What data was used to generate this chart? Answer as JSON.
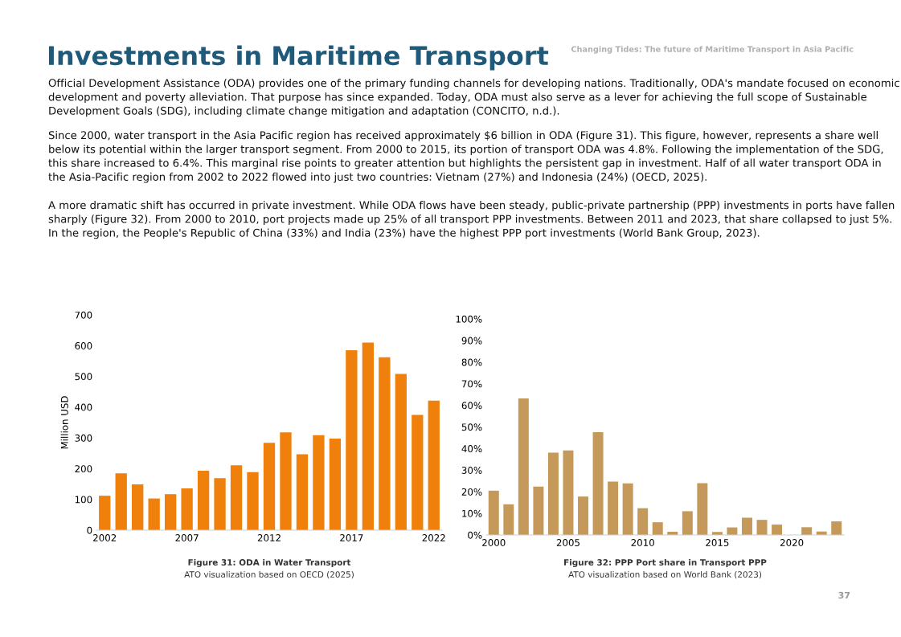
{
  "chart_data": [
    {
      "type": "other",
      "title": "Investments in Maritime Transport",
      "subtitle": "Changing Tides: The future of Maritime Transport in Asia Pacific",
      "annotations": [
        "Official Development Assistance (ODA) provides one of the primary funding channels for developing nations. Traditionally, ODA's mandate focused on economic development and poverty alleviation. That purpose has since expanded. Today, ODA must also serve as a lever for achieving the full scope of Sustainable Development Goals (SDG), including climate change mitigation and adaptation (CONCITO, n.d.).",
        "Since 2000, water transport in the Asia Pacific region has received approximately $6 billion in ODA (Figure 31). This figure, however, represents a share well below its potential within the larger transport segment. From 2000 to 2015, its portion of transport ODA was 4.8%. Following the implementation of the SDG, this share increased to 6.4%. This marginal rise points to greater attention but highlights the persistent gap in investment. Half of all water transport ODA in the Asia-Pacific region from 2002 to 2022 flowed into just two countries: Vietnam (27%) and Indonesia (24%) (OECD, 2025).",
        "A more dramatic shift has occurred in private investment. While ODA flows have been steady, public-private partnership (PPP) investments in ports have fallen sharply (Figure 32). From 2000 to 2010, port projects made up 25% of all transport PPP investments. Between 2011 and 2023, that share collapsed to just 5%. In the region, the People's Republic of China (33%) and India (23%) have the highest PPP port investments (World Bank Group, 2023).",
        "37"
      ]
    },
    {
      "type": "bar",
      "title": "Figure 31: ODA in Water Transport",
      "annotations": [
        "ATO visualization based on OECD (2025)"
      ],
      "ylabel": "Million USD",
      "color": "#f0800c",
      "x": [
        2002,
        2003,
        2004,
        2005,
        2006,
        2007,
        2008,
        2009,
        2010,
        2011,
        2012,
        2013,
        2014,
        2015,
        2016,
        2017,
        2018,
        2019,
        2020,
        2021,
        2022
      ],
      "values": [
        112,
        185,
        149,
        103,
        117,
        136,
        193,
        169,
        211,
        189,
        284,
        318,
        247,
        309,
        298,
        585,
        610,
        562,
        508,
        375,
        421
      ],
      "xlim": [
        2001.5,
        2022.5
      ],
      "xticks": [
        2002,
        2007,
        2012,
        2017,
        2022
      ],
      "ylim": [
        0,
        700
      ],
      "yticks": [
        0,
        100,
        200,
        300,
        400,
        500,
        600,
        700
      ],
      "grid": false
    },
    {
      "type": "bar",
      "title": "Figure 32: PPP Port share in Transport PPP",
      "annotations": [
        "ATO visualization based on World Bank (2023)"
      ],
      "color": "#c4995a",
      "x": [
        2000,
        2001,
        2002,
        2003,
        2004,
        2005,
        2006,
        2007,
        2008,
        2009,
        2010,
        2011,
        2012,
        2013,
        2014,
        2015,
        2016,
        2017,
        2018,
        2019,
        2020,
        2021,
        2022,
        2023
      ],
      "values": [
        20.5,
        14.2,
        63.2,
        22.4,
        38.1,
        39.1,
        17.8,
        47.6,
        24.7,
        23.9,
        12.4,
        5.9,
        1.5,
        11.0,
        24.0,
        1.4,
        3.5,
        8.0,
        7.0,
        4.8,
        0,
        3.6,
        1.6,
        6.3
      ],
      "xlim": [
        1999.5,
        2023.5
      ],
      "xticks": [
        2000,
        2005,
        2010,
        2015,
        2020
      ],
      "ylim": [
        0,
        100
      ],
      "yticks": [
        {
          "value": 0,
          "label": "0%"
        },
        {
          "value": 10,
          "label": "10%"
        },
        {
          "value": 20,
          "label": "20%"
        },
        {
          "value": 30,
          "label": "30%"
        },
        {
          "value": 40,
          "label": "40%"
        },
        {
          "value": 50,
          "label": "50%"
        },
        {
          "value": 60,
          "label": "60%"
        },
        {
          "value": 70,
          "label": "70%"
        },
        {
          "value": 80,
          "label": "80%"
        },
        {
          "value": 90,
          "label": "90%"
        },
        {
          "value": 100,
          "label": "100%"
        }
      ],
      "grid": false
    }
  ]
}
